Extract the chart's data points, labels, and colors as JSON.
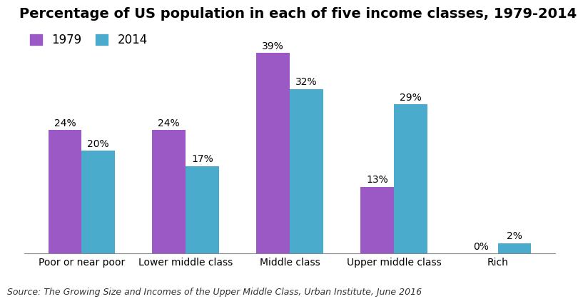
{
  "title": "Percentage of US population in each of five income classes, 1979-2014",
  "categories": [
    "Poor or near poor",
    "Lower middle class",
    "Middle class",
    "Upper middle class",
    "Rich"
  ],
  "values_1979": [
    24,
    24,
    39,
    13,
    0
  ],
  "values_2014": [
    20,
    17,
    32,
    29,
    2
  ],
  "color_1979": "#9b59c5",
  "color_2014": "#4aabcc",
  "source": "Source: The Growing Size and Incomes of the Upper Middle Class, Urban Institute, June 2016",
  "legend_labels": [
    "1979",
    "2014"
  ],
  "bar_width": 0.32,
  "ylim": [
    0,
    44
  ],
  "background_color": "#ffffff",
  "title_fontsize": 14,
  "label_fontsize": 10,
  "tick_fontsize": 10,
  "source_fontsize": 9
}
